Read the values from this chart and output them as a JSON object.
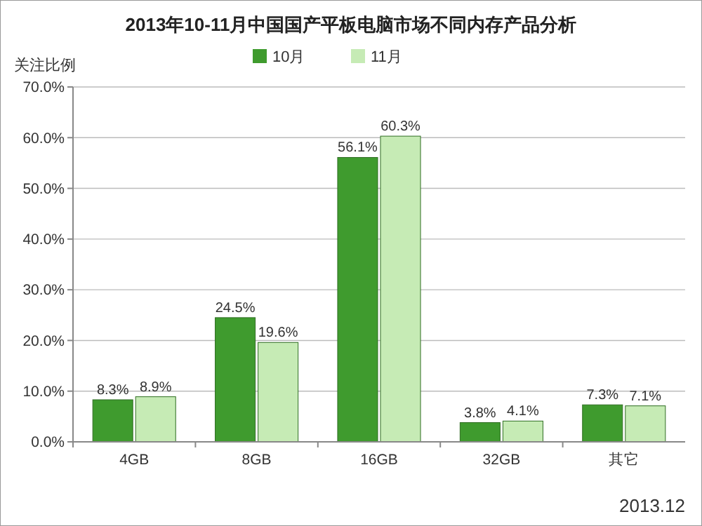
{
  "chart_data": {
    "type": "bar",
    "title": "2013年10-11月中国国产平板电脑市场不同内存产品分析",
    "ylabel": "关注比例",
    "categories": [
      "4GB",
      "8GB",
      "16GB",
      "32GB",
      "其它"
    ],
    "series": [
      {
        "name": "10月",
        "color": "#3f9b2e",
        "values": [
          8.3,
          24.5,
          56.1,
          3.8,
          7.3
        ],
        "value_labels": [
          "8.3%",
          "24.5%",
          "56.1%",
          "3.8%",
          "7.3%"
        ]
      },
      {
        "name": "11月",
        "color": "#c6ebb5",
        "values": [
          8.9,
          19.6,
          60.3,
          4.1,
          7.1
        ],
        "value_labels": [
          "8.9%",
          "19.6%",
          "60.3%",
          "4.1%",
          "7.1%"
        ]
      }
    ],
    "ylim": [
      0,
      70
    ],
    "yticks": [
      {
        "value": 0,
        "label": "0.0%"
      },
      {
        "value": 10,
        "label": "10.0%"
      },
      {
        "value": 20,
        "label": "20.0%"
      },
      {
        "value": 30,
        "label": "30.0%"
      },
      {
        "value": 40,
        "label": "40.0%"
      },
      {
        "value": 50,
        "label": "50.0%"
      },
      {
        "value": 60,
        "label": "60.0%"
      },
      {
        "value": 70,
        "label": "70.0%"
      }
    ],
    "grid": "y",
    "legend": "top",
    "annotations": [
      "2013.12"
    ]
  }
}
